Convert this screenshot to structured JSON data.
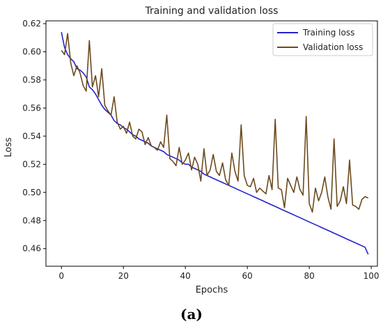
{
  "caption": "(a)",
  "chart_data": {
    "type": "line",
    "title": "Training and validation loss",
    "xlabel": "Epochs",
    "ylabel": "Loss",
    "xlim": [
      -5,
      102
    ],
    "ylim": [
      0.4475,
      0.622
    ],
    "xticks": [
      0,
      20,
      40,
      60,
      80,
      100
    ],
    "yticks": [
      0.46,
      0.48,
      0.5,
      0.52,
      0.54,
      0.56,
      0.58,
      0.6,
      0.62
    ],
    "grid": false,
    "legend_position": "top-right",
    "series": [
      {
        "name": "Training loss",
        "color": "#2222cc",
        "x": [
          0,
          1,
          2,
          3,
          4,
          5,
          6,
          7,
          8,
          9,
          10,
          11,
          12,
          13,
          14,
          15,
          16,
          17,
          18,
          19,
          20,
          21,
          22,
          23,
          24,
          25,
          26,
          27,
          28,
          29,
          30,
          31,
          32,
          33,
          34,
          35,
          36,
          37,
          38,
          39,
          40,
          41,
          42,
          43,
          44,
          45,
          46,
          47,
          48,
          49,
          50,
          51,
          52,
          53,
          54,
          55,
          56,
          57,
          58,
          59,
          60,
          61,
          62,
          63,
          64,
          65,
          66,
          67,
          68,
          69,
          70,
          71,
          72,
          73,
          74,
          75,
          76,
          77,
          78,
          79,
          80,
          81,
          82,
          83,
          84,
          85,
          86,
          87,
          88,
          89,
          90,
          91,
          92,
          93,
          94,
          95,
          96,
          97,
          98,
          99
        ],
        "y": [
          0.614,
          0.603,
          0.598,
          0.595,
          0.593,
          0.588,
          0.587,
          0.585,
          0.582,
          0.575,
          0.573,
          0.57,
          0.566,
          0.562,
          0.559,
          0.557,
          0.555,
          0.551,
          0.549,
          0.548,
          0.546,
          0.545,
          0.543,
          0.541,
          0.54,
          0.538,
          0.537,
          0.536,
          0.535,
          0.533,
          0.532,
          0.531,
          0.53,
          0.529,
          0.527,
          0.526,
          0.525,
          0.524,
          0.523,
          0.521,
          0.52,
          0.52,
          0.518,
          0.517,
          0.516,
          0.515,
          0.513,
          0.512,
          0.511,
          0.51,
          0.509,
          0.508,
          0.507,
          0.506,
          0.505,
          0.504,
          0.503,
          0.502,
          0.501,
          0.5,
          0.499,
          0.498,
          0.497,
          0.496,
          0.495,
          0.494,
          0.493,
          0.492,
          0.491,
          0.49,
          0.489,
          0.488,
          0.487,
          0.486,
          0.485,
          0.484,
          0.483,
          0.482,
          0.481,
          0.48,
          0.479,
          0.478,
          0.477,
          0.476,
          0.475,
          0.474,
          0.473,
          0.472,
          0.471,
          0.47,
          0.469,
          0.468,
          0.467,
          0.466,
          0.465,
          0.464,
          0.463,
          0.462,
          0.461,
          0.456
        ]
      },
      {
        "name": "Validation loss",
        "color": "#6b4a1d",
        "x": [
          0,
          1,
          2,
          3,
          4,
          5,
          6,
          7,
          8,
          9,
          10,
          11,
          12,
          13,
          14,
          15,
          16,
          17,
          18,
          19,
          20,
          21,
          22,
          23,
          24,
          25,
          26,
          27,
          28,
          29,
          30,
          31,
          32,
          33,
          34,
          35,
          36,
          37,
          38,
          39,
          40,
          41,
          42,
          43,
          44,
          45,
          46,
          47,
          48,
          49,
          50,
          51,
          52,
          53,
          54,
          55,
          56,
          57,
          58,
          59,
          60,
          61,
          62,
          63,
          64,
          65,
          66,
          67,
          68,
          69,
          70,
          71,
          72,
          73,
          74,
          75,
          76,
          77,
          78,
          79,
          80,
          81,
          82,
          83,
          84,
          85,
          86,
          87,
          88,
          89,
          90,
          91,
          92,
          93,
          94,
          95,
          96,
          97,
          98,
          99
        ],
        "y": [
          0.601,
          0.598,
          0.613,
          0.592,
          0.583,
          0.59,
          0.585,
          0.576,
          0.572,
          0.608,
          0.575,
          0.583,
          0.568,
          0.588,
          0.562,
          0.558,
          0.555,
          0.568,
          0.55,
          0.545,
          0.547,
          0.542,
          0.55,
          0.54,
          0.538,
          0.545,
          0.543,
          0.534,
          0.539,
          0.533,
          0.532,
          0.53,
          0.536,
          0.532,
          0.555,
          0.524,
          0.522,
          0.519,
          0.532,
          0.52,
          0.523,
          0.528,
          0.516,
          0.525,
          0.52,
          0.508,
          0.531,
          0.512,
          0.516,
          0.527,
          0.515,
          0.512,
          0.521,
          0.509,
          0.505,
          0.528,
          0.515,
          0.508,
          0.548,
          0.512,
          0.505,
          0.504,
          0.51,
          0.5,
          0.503,
          0.501,
          0.499,
          0.512,
          0.502,
          0.552,
          0.503,
          0.502,
          0.489,
          0.51,
          0.505,
          0.5,
          0.511,
          0.502,
          0.498,
          0.554,
          0.492,
          0.486,
          0.503,
          0.494,
          0.5,
          0.511,
          0.497,
          0.488,
          0.538,
          0.49,
          0.494,
          0.504,
          0.492,
          0.523,
          0.491,
          0.49,
          0.488,
          0.495,
          0.497,
          0.496
        ]
      }
    ]
  }
}
